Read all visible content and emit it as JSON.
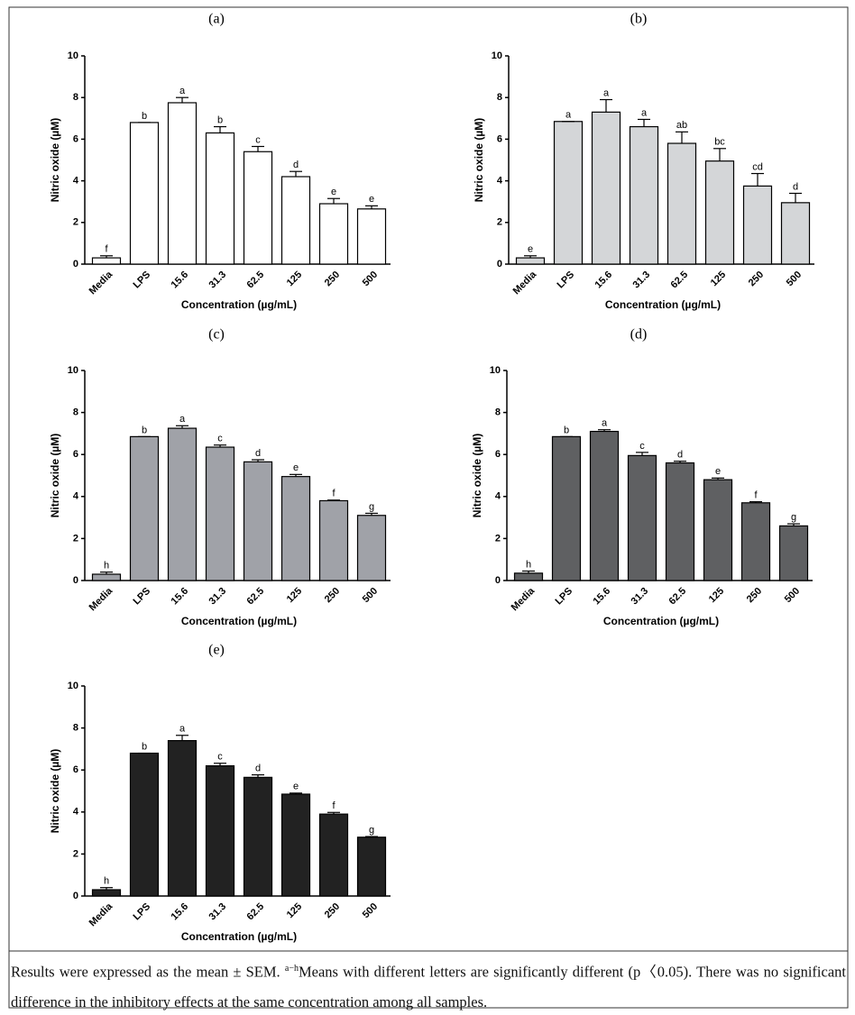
{
  "chart_data": [
    {
      "type": "bar",
      "panel": "(a)",
      "color": "#ffffff",
      "categories": [
        "Media",
        "LPS",
        "15.6",
        "31.3",
        "62.5",
        "125",
        "250",
        "500"
      ],
      "values": [
        0.3,
        6.8,
        7.75,
        6.3,
        5.4,
        4.2,
        2.9,
        2.65
      ],
      "errors": [
        0.1,
        0,
        0.25,
        0.3,
        0.25,
        0.25,
        0.25,
        0.15
      ],
      "letters": [
        "f",
        "b",
        "a",
        "b",
        "c",
        "d",
        "e",
        "e"
      ],
      "xlabel": "Concentration (µg/mL)",
      "ylabel": "Nitric oxide (µM)",
      "ylim": [
        0,
        10
      ],
      "yticks": [
        0,
        2,
        4,
        6,
        8,
        10
      ]
    },
    {
      "type": "bar",
      "panel": "(b)",
      "color": "#d4d6d8",
      "categories": [
        "Media",
        "LPS",
        "15.6",
        "31.3",
        "62.5",
        "125",
        "250",
        "500"
      ],
      "values": [
        0.3,
        6.85,
        7.3,
        6.6,
        5.8,
        4.95,
        3.75,
        2.95
      ],
      "errors": [
        0.1,
        0,
        0.6,
        0.35,
        0.55,
        0.6,
        0.6,
        0.45
      ],
      "letters": [
        "e",
        "a",
        "a",
        "a",
        "ab",
        "bc",
        "cd",
        "d"
      ],
      "xlabel": "Concentration (µg/mL)",
      "ylabel": "Nitric oxide (µM)",
      "ylim": [
        0,
        10
      ],
      "yticks": [
        0,
        2,
        4,
        6,
        8,
        10
      ]
    },
    {
      "type": "bar",
      "panel": "(c)",
      "color": "#a0a2a8",
      "categories": [
        "Media",
        "LPS",
        "15.6",
        "31.3",
        "62.5",
        "125",
        "250",
        "500"
      ],
      "values": [
        0.3,
        6.85,
        7.25,
        6.35,
        5.65,
        4.95,
        3.8,
        3.1
      ],
      "errors": [
        0.1,
        0,
        0.12,
        0.1,
        0.1,
        0.1,
        0.03,
        0.1
      ],
      "letters": [
        "h",
        "b",
        "a",
        "c",
        "d",
        "e",
        "f",
        "g"
      ],
      "xlabel": "Concentration (µg/mL)",
      "ylabel": "Nitric oxide (µM)",
      "ylim": [
        0,
        10
      ],
      "yticks": [
        0,
        2,
        4,
        6,
        8,
        10
      ]
    },
    {
      "type": "bar",
      "panel": "(d)",
      "color": "#5f6062",
      "categories": [
        "Media",
        "LPS",
        "15.6",
        "31.3",
        "62.5",
        "125",
        "250",
        "500"
      ],
      "values": [
        0.35,
        6.85,
        7.1,
        5.95,
        5.6,
        4.8,
        3.7,
        2.6
      ],
      "errors": [
        0.1,
        0,
        0.08,
        0.15,
        0.08,
        0.08,
        0.05,
        0.1
      ],
      "letters": [
        "h",
        "b",
        "a",
        "c",
        "d",
        "e",
        "f",
        "g"
      ],
      "xlabel": "Concentration (µg/mL)",
      "ylabel": "Nitric oxide (µM)",
      "ylim": [
        0,
        10
      ],
      "yticks": [
        0,
        2,
        4,
        6,
        8,
        10
      ]
    },
    {
      "type": "bar",
      "panel": "(e)",
      "color": "#222222",
      "categories": [
        "Media",
        "LPS",
        "15.6",
        "31.3",
        "62.5",
        "125",
        "250",
        "500"
      ],
      "values": [
        0.3,
        6.8,
        7.4,
        6.2,
        5.65,
        4.85,
        3.9,
        2.8
      ],
      "errors": [
        0.1,
        0,
        0.25,
        0.12,
        0.12,
        0.05,
        0.08,
        0.03
      ],
      "letters": [
        "h",
        "b",
        "a",
        "c",
        "d",
        "e",
        "f",
        "g"
      ],
      "xlabel": "Concentration (µg/mL)",
      "ylabel": "Nitric oxide (µM)",
      "ylim": [
        0,
        10
      ],
      "yticks": [
        0,
        2,
        4,
        6,
        8,
        10
      ]
    }
  ],
  "caption": {
    "text_before": "Results were expressed as the mean ± SEM. ",
    "superscript": "a−h",
    "text_after": "Means with different letters are significantly different (p〈0.05). There was no significant difference in the inhibitory effects at the same concentration among all samples."
  }
}
